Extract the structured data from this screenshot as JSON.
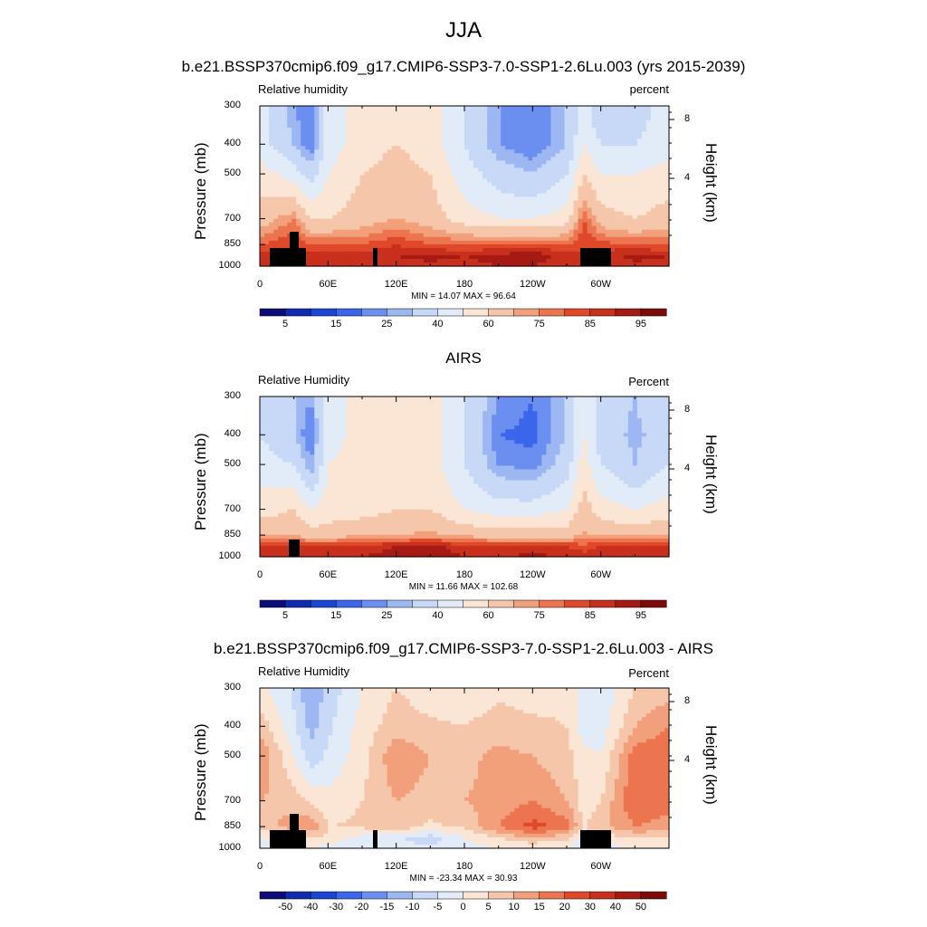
{
  "figure": {
    "title": "JJA",
    "case_label": "b.e21.BSSP370cmip6.f09_g17.CMIP6-SSP3-7.0-SSP1-2.6Lu.003 (yrs 2015-2039)"
  },
  "panels": [
    {
      "title": "",
      "left_label": "Relative humidity",
      "right_label": "percent",
      "minmax": "MIN =  14.07  MAX =  96.64"
    },
    {
      "title": "AIRS",
      "left_label": "Relative Humidity",
      "right_label": "Percent",
      "minmax": "MIN =  11.66  MAX = 102.68"
    },
    {
      "title": "b.e21.BSSP370cmip6.f09_g17.CMIP6-SSP3-7.0-SSP1-2.6Lu.003 - AIRS",
      "left_label": "Relative Humidity",
      "right_label": "Percent",
      "minmax": "MIN = -23.34  MAX =  30.93"
    }
  ],
  "axes": {
    "ylabel": "Pressure (mb)",
    "y2label": "Height (km)",
    "x_ticks": [
      "0",
      "60E",
      "120E",
      "180",
      "120W",
      "60W"
    ],
    "y_ticks": [
      "300",
      "400",
      "500",
      "700",
      "850",
      "1000"
    ],
    "y2_ticks": [
      "8",
      "4"
    ]
  },
  "colorbars": [
    {
      "labels": [
        "5",
        "15",
        "25",
        "40",
        "60",
        "75",
        "85",
        "95"
      ]
    },
    {
      "labels": [
        "5",
        "15",
        "25",
        "40",
        "60",
        "75",
        "85",
        "95"
      ]
    },
    {
      "labels": [
        "-50",
        "-40",
        "-30",
        "-20",
        "-15",
        "-10",
        "-5",
        "0",
        "5",
        "10",
        "15",
        "20",
        "30",
        "40",
        "50"
      ]
    }
  ],
  "colors": {
    "seq": [
      "#0d0d7a",
      "#0f2bb0",
      "#1a46d6",
      "#3b66ec",
      "#6b8ff0",
      "#9db7f3",
      "#c7d9f7",
      "#e2ebf8",
      "#fbe6d6",
      "#f6c6aa",
      "#f2a07b",
      "#ec7550",
      "#e0482a",
      "#c8301d",
      "#a51a12",
      "#7e0a0a"
    ],
    "div": [
      "#0d0d7a",
      "#0f2bb0",
      "#1a46d6",
      "#3b66ec",
      "#6b8ff0",
      "#9db7f3",
      "#c7d9f7",
      "#e2ebf8",
      "#fbe6d6",
      "#f6c6aa",
      "#f2a07b",
      "#ec7550",
      "#e0482a",
      "#c8301d",
      "#a51a12",
      "#7e0a0a"
    ]
  },
  "chart_data": [
    {
      "type": "heatmap",
      "title": "",
      "variable": "Relative humidity",
      "units": "percent",
      "xlabel": "",
      "ylabel": "Pressure (mb)",
      "y2label": "Height (km)",
      "x_range": [
        0,
        360
      ],
      "y_range": [
        1000,
        300
      ],
      "levels": [
        5,
        10,
        15,
        20,
        25,
        30,
        40,
        50,
        60,
        70,
        75,
        80,
        85,
        90,
        95
      ],
      "min": 14.07,
      "max": 96.64,
      "x": [
        0,
        30,
        45,
        60,
        90,
        120,
        150,
        180,
        210,
        240,
        270,
        285,
        300,
        330,
        360
      ],
      "y": [
        300,
        400,
        500,
        700,
        850,
        925,
        1000
      ],
      "z": [
        [
          45,
          25,
          20,
          45,
          55,
          55,
          55,
          40,
          25,
          20,
          30,
          45,
          30,
          35,
          45
        ],
        [
          45,
          30,
          20,
          45,
          55,
          60,
          55,
          40,
          25,
          20,
          30,
          50,
          40,
          40,
          45
        ],
        [
          55,
          45,
          35,
          50,
          60,
          65,
          60,
          45,
          35,
          30,
          40,
          60,
          50,
          50,
          55
        ],
        [
          65,
          75,
          60,
          60,
          65,
          70,
          65,
          55,
          50,
          50,
          55,
          80,
          65,
          60,
          65
        ],
        [
          80,
          85,
          80,
          80,
          80,
          85,
          80,
          80,
          80,
          80,
          80,
          85,
          82,
          80,
          80
        ],
        [
          88,
          88,
          90,
          88,
          88,
          90,
          92,
          90,
          92,
          94,
          88,
          85,
          88,
          92,
          90
        ],
        [
          85,
          85,
          88,
          85,
          85,
          88,
          88,
          88,
          90,
          90,
          85,
          85,
          85,
          88,
          88
        ]
      ]
    },
    {
      "type": "heatmap",
      "title": "AIRS",
      "variable": "Relative Humidity",
      "units": "Percent",
      "xlabel": "",
      "ylabel": "Pressure (mb)",
      "y2label": "Height (km)",
      "x_range": [
        0,
        360
      ],
      "y_range": [
        1000,
        300
      ],
      "levels": [
        5,
        10,
        15,
        20,
        25,
        30,
        40,
        50,
        60,
        70,
        75,
        80,
        85,
        90,
        95
      ],
      "min": 11.66,
      "max": 102.68,
      "x": [
        0,
        30,
        45,
        60,
        90,
        120,
        150,
        180,
        210,
        240,
        270,
        285,
        300,
        330,
        360
      ],
      "y": [
        300,
        400,
        500,
        700,
        850,
        925,
        1000
      ],
      "z": [
        [
          40,
          30,
          25,
          45,
          55,
          50,
          55,
          40,
          25,
          20,
          30,
          50,
          35,
          30,
          40
        ],
        [
          40,
          30,
          20,
          45,
          55,
          55,
          55,
          40,
          20,
          18,
          30,
          50,
          35,
          28,
          35
        ],
        [
          45,
          40,
          25,
          50,
          55,
          55,
          55,
          40,
          25,
          22,
          35,
          55,
          40,
          30,
          40
        ],
        [
          55,
          60,
          50,
          55,
          55,
          60,
          60,
          50,
          45,
          45,
          50,
          65,
          55,
          50,
          55
        ],
        [
          70,
          70,
          65,
          65,
          70,
          70,
          72,
          68,
          65,
          65,
          65,
          72,
          68,
          68,
          70
        ],
        [
          85,
          85,
          85,
          85,
          88,
          90,
          92,
          88,
          85,
          85,
          85,
          82,
          85,
          85,
          85
        ],
        [
          88,
          88,
          90,
          90,
          90,
          92,
          92,
          90,
          90,
          92,
          90,
          88,
          88,
          88,
          88
        ]
      ]
    },
    {
      "type": "heatmap",
      "title": "b.e21.BSSP370cmip6.f09_g17.CMIP6-SSP3-7.0-SSP1-2.6Lu.003 - AIRS",
      "variable": "Relative Humidity",
      "units": "Percent",
      "xlabel": "",
      "ylabel": "Pressure (mb)",
      "y2label": "Height (km)",
      "x_range": [
        0,
        360
      ],
      "y_range": [
        1000,
        300
      ],
      "levels": [
        -50,
        -40,
        -30,
        -20,
        -15,
        -10,
        -5,
        0,
        5,
        10,
        15,
        20,
        30,
        40,
        50
      ],
      "min": -23.34,
      "max": 30.93,
      "x": [
        0,
        30,
        45,
        60,
        90,
        120,
        150,
        180,
        210,
        240,
        270,
        285,
        300,
        330,
        360
      ],
      "y": [
        300,
        400,
        500,
        700,
        850,
        925,
        1000
      ],
      "z": [
        [
          2,
          -6,
          -15,
          -8,
          0,
          5,
          2,
          2,
          4,
          3,
          4,
          -2,
          -4,
          5,
          8
        ],
        [
          8,
          -4,
          -12,
          -6,
          2,
          8,
          6,
          5,
          7,
          6,
          5,
          -3,
          -3,
          10,
          15
        ],
        [
          15,
          0,
          -8,
          -4,
          3,
          14,
          10,
          8,
          12,
          10,
          7,
          2,
          0,
          18,
          20
        ],
        [
          10,
          8,
          4,
          2,
          5,
          10,
          8,
          10,
          12,
          15,
          10,
          2,
          5,
          20,
          18
        ],
        [
          8,
          12,
          14,
          5,
          6,
          8,
          4,
          6,
          15,
          22,
          18,
          5,
          8,
          15,
          12
        ],
        [
          0,
          2,
          4,
          4,
          -2,
          -4,
          -8,
          0,
          5,
          10,
          6,
          -2,
          2,
          5,
          5
        ],
        [
          -3,
          -2,
          0,
          -2,
          -5,
          -4,
          -3,
          -2,
          0,
          0,
          -1,
          -3,
          -2,
          0,
          0
        ]
      ]
    }
  ]
}
